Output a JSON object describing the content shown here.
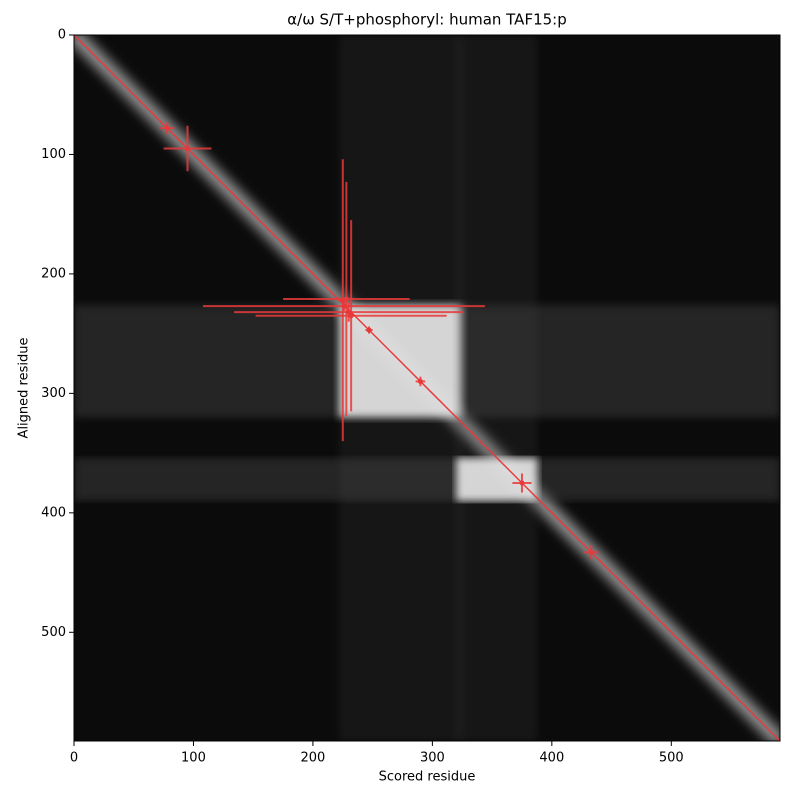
{
  "chart_data": {
    "type": "scatter",
    "title": "α/ω S/T+phosphoryl: human TAF15:p",
    "xlabel": "Scored residue",
    "ylabel": "Aligned residue",
    "xlim": [
      0,
      591
    ],
    "ylim": [
      0,
      591
    ],
    "y_inverted": true,
    "xticks": [
      0,
      100,
      200,
      300,
      400,
      500
    ],
    "yticks": [
      0,
      100,
      200,
      300,
      400,
      500
    ],
    "color": "#e8393a",
    "background": "#0b0b0b",
    "blocks": {
      "x": [
        [
          222,
          325
        ],
        [
          320,
          388
        ]
      ],
      "y": [
        [
          226,
          320
        ],
        [
          354,
          390
        ]
      ]
    },
    "x": [
      78,
      95,
      225,
      226,
      228,
      230,
      232,
      247,
      290,
      375,
      433
    ],
    "y": [
      78,
      95,
      222,
      227,
      221,
      232,
      235,
      247,
      290,
      375,
      433
    ],
    "xerr": [
      6,
      20,
      4,
      118,
      53,
      96,
      80,
      3,
      4,
      8,
      6
    ],
    "yerr": [
      5,
      19,
      118,
      4,
      98,
      8,
      80,
      3,
      4,
      8,
      6
    ]
  }
}
